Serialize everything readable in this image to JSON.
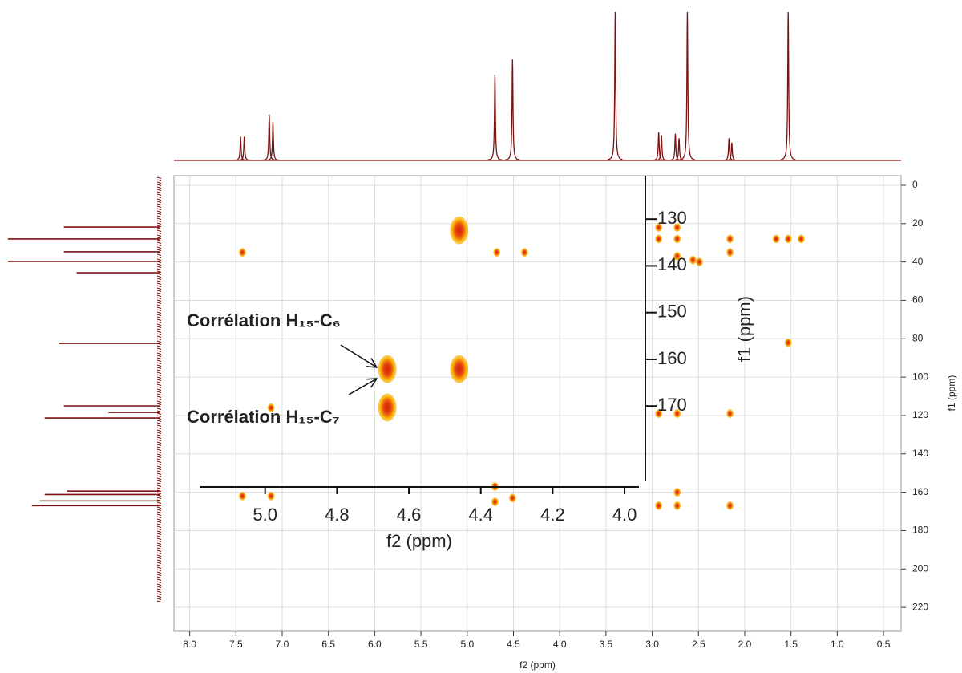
{
  "chart_data": [
    {
      "type": "nmr2d",
      "x_label": "f2 (ppm)",
      "y_label": "f1 (ppm)",
      "xlim": [
        8.17,
        0.31
      ],
      "ylim": [
        -5,
        232.5
      ],
      "xticks": [
        {
          "value": 8,
          "label": "8.0"
        },
        7.5,
        {
          "value": 7,
          "label": "7.0"
        },
        6.5,
        {
          "value": 6,
          "label": "6.0"
        },
        5.5,
        {
          "value": 5,
          "label": "5.0"
        },
        4.5,
        {
          "value": 4,
          "label": "4.0"
        },
        3.5,
        {
          "value": 3,
          "label": "3.0"
        },
        2.5,
        {
          "value": 2,
          "label": "2.0"
        },
        1.5,
        {
          "value": 1,
          "label": "1.0"
        },
        0.5
      ],
      "yticks": [
        0,
        20,
        40,
        60,
        80,
        100,
        120,
        140,
        160,
        180,
        200,
        220
      ],
      "grid": true,
      "series": [
        {
          "color": "#f7a600",
          "center_color": "#d4200c",
          "x": [
            7.43,
            7.43,
            7.12,
            7.12,
            4.7,
            4.7,
            4.51,
            4.68,
            4.38,
            2.93,
            2.93,
            2.93,
            2.93,
            2.73,
            2.73,
            2.73,
            2.73,
            2.73,
            2.73,
            2.56,
            2.49,
            2.16,
            2.16,
            2.16,
            2.16,
            1.53,
            1.53,
            1.66,
            1.39
          ],
          "y": [
            35,
            162,
            162,
            116,
            157,
            165,
            163,
            35,
            35,
            22,
            28,
            119,
            167,
            28,
            22,
            37,
            119,
            167,
            160,
            39,
            40,
            28,
            35,
            119,
            167,
            28,
            82,
            28,
            28
          ]
        }
      ],
      "top_spectrum": {
        "color": "#7b1111",
        "x": [
          7.45,
          7.41,
          7.14,
          7.1,
          4.7,
          4.51,
          3.4,
          2.93,
          2.9,
          2.75,
          2.71,
          2.62,
          2.17,
          2.14,
          1.53
        ],
        "values": [
          16,
          16,
          31,
          26,
          58,
          68,
          100,
          19,
          17,
          18,
          15,
          100,
          15,
          12,
          100
        ]
      },
      "left_spectrum": {
        "color": "#7b1111",
        "y": [
          21.8,
          28,
          34.7,
          39.7,
          45.6,
          82.4,
          115,
          118.4,
          121.3,
          159.4,
          161.2,
          164.5,
          167
        ],
        "values": [
          60,
          95,
          60,
          95,
          52,
          63,
          60,
          32,
          72,
          58,
          72,
          75,
          80
        ]
      }
    },
    {
      "type": "inset",
      "x_label": "f2 (ppm)",
      "y_label": "f1 (ppm)",
      "xlim": [
        5.18,
        3.96
      ],
      "ylim": [
        120.7,
        186.1
      ],
      "xticks": [
        {
          "value": 5,
          "label": "5.0"
        },
        4.8,
        4.6,
        4.4,
        4.2,
        {
          "value": 4,
          "label": "4.0"
        }
      ],
      "yticks": [
        130,
        140,
        150,
        160,
        170
      ],
      "series": [
        {
          "color": "#f7a600",
          "center_color": "#d4200c",
          "x": [
            4.46,
            4.46,
            4.66,
            4.66
          ],
          "y": [
            132.4,
            162.1,
            162.1,
            170.3
          ]
        }
      ],
      "annotations": [
        {
          "text": "Corrélation H₁₅-C₆"
        },
        {
          "text": "Corrélation H₁₅-C₇"
        }
      ]
    }
  ]
}
